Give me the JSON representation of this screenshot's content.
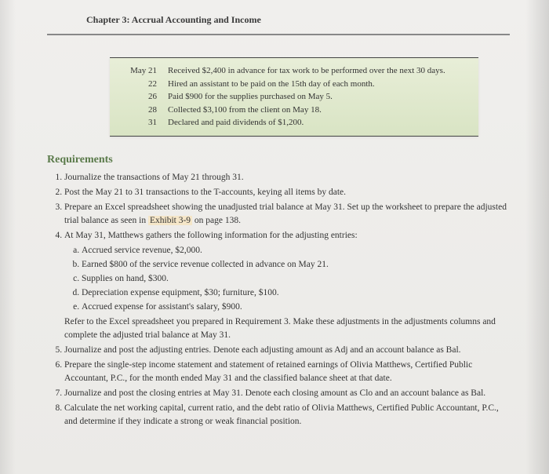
{
  "chapter_header": "Chapter 3: Accrual Accounting and Income",
  "transactions": [
    {
      "date": "May 21",
      "desc": "Received $2,400 in advance for tax work to be performed over the next 30 days."
    },
    {
      "date": "22",
      "desc": "Hired an assistant to be paid on the 15th day of each month."
    },
    {
      "date": "26",
      "desc": "Paid $900 for the supplies purchased on May 5."
    },
    {
      "date": "28",
      "desc": "Collected $3,100 from the client on May 18."
    },
    {
      "date": "31",
      "desc": "Declared and paid dividends of $1,200."
    }
  ],
  "section_title": "Requirements",
  "requirements": {
    "r1": "Journalize the transactions of May 21 through 31.",
    "r2": "Post the May 21 to 31 transactions to the T-accounts, keying all items by date.",
    "r3a": "Prepare an Excel spreadsheet showing the unadjusted trial balance at May 31. Set up the worksheet to prepare the adjusted trial balance as seen in ",
    "r3_hl": "Exhibit 3-9",
    "r3b": " on page 138.",
    "r4": "At May 31, Matthews gathers the following information for the adjusting entries:",
    "r4a": "Accrued service revenue, $2,000.",
    "r4b": "Earned $800 of the service revenue collected in advance on May 21.",
    "r4c": "Supplies on hand, $300.",
    "r4d": "Depreciation expense equipment, $30; furniture, $100.",
    "r4e": "Accrued expense for assistant's salary, $900.",
    "r4_para": "Refer to the Excel spreadsheet you prepared in Requirement 3. Make these adjustments in the adjustments columns and complete the adjusted trial balance at May 31.",
    "r5": "Journalize and post the adjusting entries. Denote each adjusting amount as Adj and an account balance as Bal.",
    "r6": "Prepare the single-step income statement and statement of retained earnings of Olivia Matthews, Certified Public Accountant, P.C., for the month ended May 31 and the classified balance sheet at that date.",
    "r7": "Journalize and post the closing entries at May 31. Denote each closing amount as Clo and an account balance as Bal.",
    "r8": "Calculate the net working capital, current ratio, and the debt ratio of Olivia Matthews, Certified Public Accountant, P.C., and determine if they indicate a strong or weak financial position."
  },
  "styling": {
    "page_bg": "#ebeae7",
    "box_bg_top": "#e8eed8",
    "box_bg_bottom": "#d9e4c4",
    "section_title_color": "#5a7a4a",
    "highlight_bg": "#f5e6c8",
    "body_font": "Georgia, Times New Roman, serif",
    "body_size_pt": 11.5,
    "header_size_pt": 12,
    "section_title_size_pt": 14
  }
}
